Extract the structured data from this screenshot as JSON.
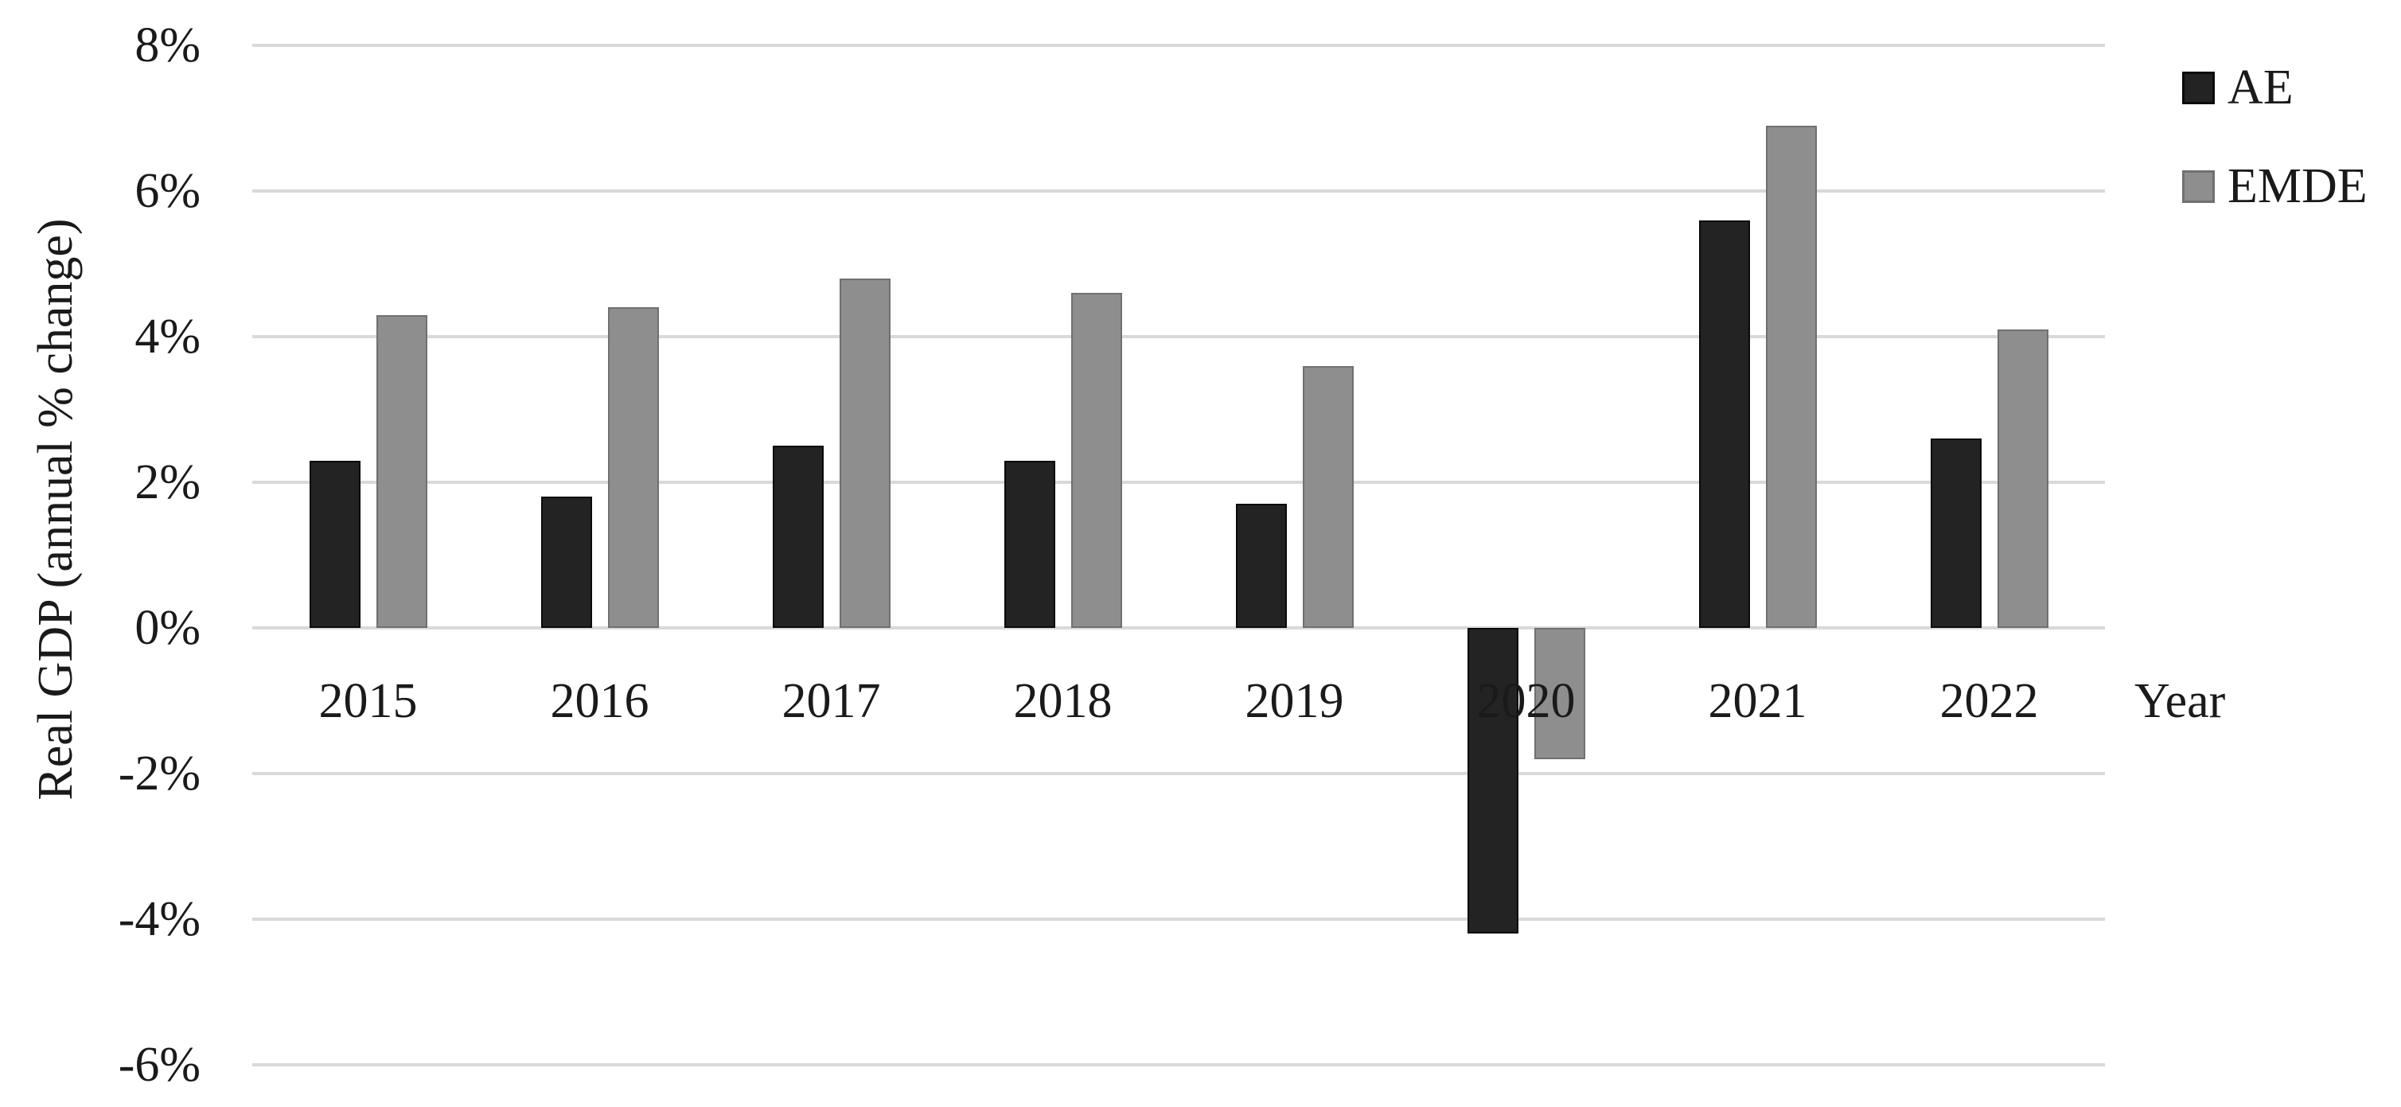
{
  "chart_data": {
    "type": "bar",
    "title": "",
    "categories": [
      "2015",
      "2016",
      "2017",
      "2018",
      "2019",
      "2020",
      "2021",
      "2022"
    ],
    "series": [
      {
        "name": "AE",
        "color": "#232323",
        "border_color": "#0a0a0a",
        "values": [
          2.3,
          1.8,
          2.5,
          2.3,
          1.7,
          -4.2,
          5.6,
          2.6
        ]
      },
      {
        "name": "EMDE",
        "color": "#8e8e8e",
        "border_color": "#707070",
        "values": [
          4.3,
          4.4,
          4.8,
          4.6,
          3.6,
          -1.8,
          6.9,
          4.1
        ]
      }
    ],
    "xlabel": "Year",
    "ylabel": "Real GDP (annual % change)",
    "ylim": [
      -6,
      8
    ],
    "ytick_step": 2,
    "yticks": [
      {
        "value": 8,
        "label": "8%"
      },
      {
        "value": 6,
        "label": "6%"
      },
      {
        "value": 4,
        "label": "4%"
      },
      {
        "value": 2,
        "label": "2%"
      },
      {
        "value": 0,
        "label": "0%"
      },
      {
        "value": -2,
        "label": "-2%"
      },
      {
        "value": -4,
        "label": "-4%"
      },
      {
        "value": -6,
        "label": "-6%"
      }
    ],
    "grid": true,
    "gridline_color": "#d9d9d9",
    "background_color": "#ffffff",
    "text_color": "#1a1a1a",
    "legend_position": "top-right"
  }
}
